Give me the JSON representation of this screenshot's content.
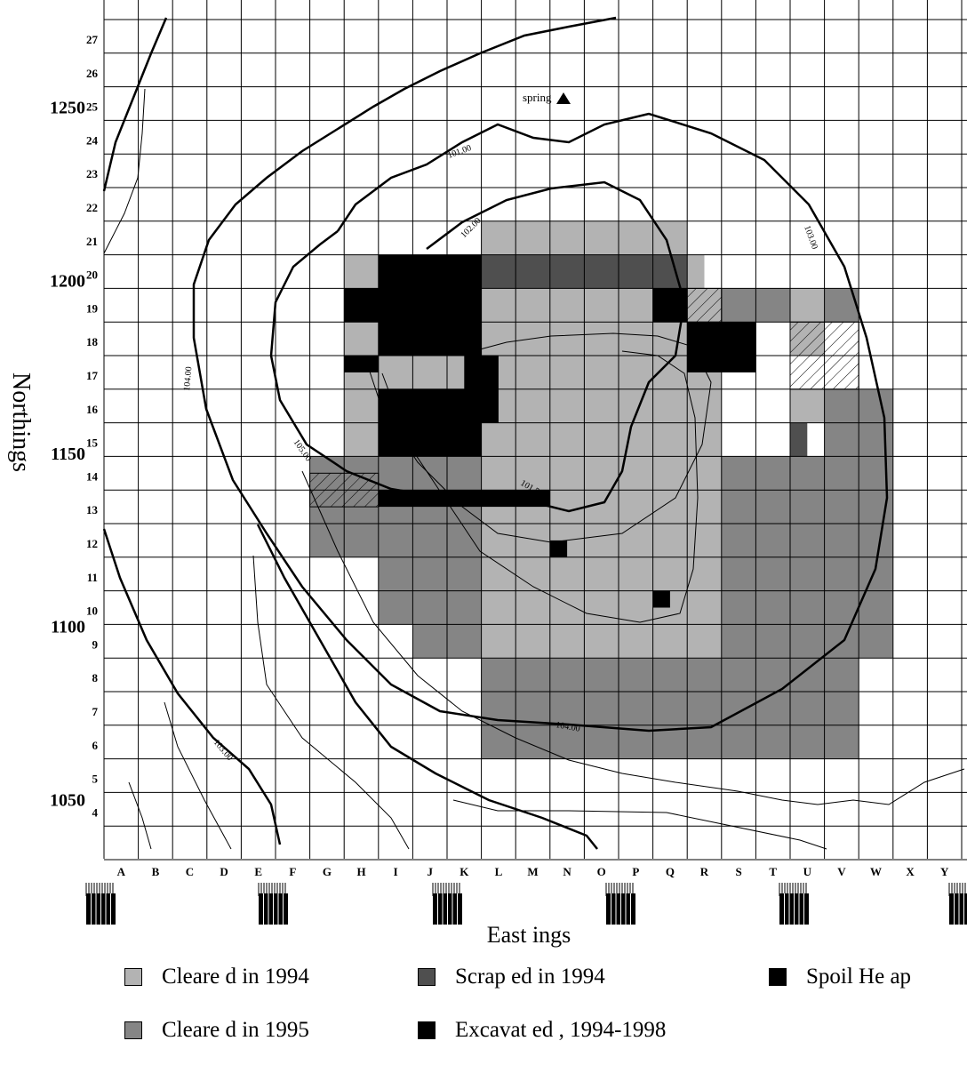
{
  "map": {
    "y_axis_title": "Northings",
    "x_axis_title": "East ings",
    "easting_letters": [
      "A",
      "B",
      "C",
      "D",
      "E",
      "F",
      "G",
      "H",
      "I",
      "J",
      "K",
      "L",
      "M",
      "N",
      "O",
      "P",
      "Q",
      "R",
      "S",
      "T",
      "U",
      "V",
      "W",
      "X",
      "Y"
    ],
    "northing_row_numbers": [
      "27",
      "26",
      "25",
      "24",
      "23",
      "22",
      "21",
      "20",
      "19",
      "18",
      "17",
      "16",
      "15",
      "14",
      "13",
      "12",
      "11",
      "10",
      "9",
      "8",
      "7",
      "6",
      "5",
      "4"
    ],
    "northing_values": [
      "1250",
      "1200",
      "1150",
      "1100",
      "1050"
    ],
    "spring_label": "spring",
    "contour_labels": [
      "101.00",
      "102.00",
      "103.00",
      "104.00",
      "105.00",
      "101.50",
      "104.00",
      "103.00"
    ]
  },
  "legend": {
    "items": [
      {
        "label": "Cleare d in 1994",
        "color": "#b3b3b3"
      },
      {
        "label": "Scrap ed in 1994",
        "color": "#4f4f4f"
      },
      {
        "label": "Spoil He ap",
        "color": "#000000"
      },
      {
        "label": "Cleare d in 1995",
        "color": "#858585"
      },
      {
        "label": "Excavat ed , 1994-1998",
        "color": "#000000"
      }
    ]
  }
}
